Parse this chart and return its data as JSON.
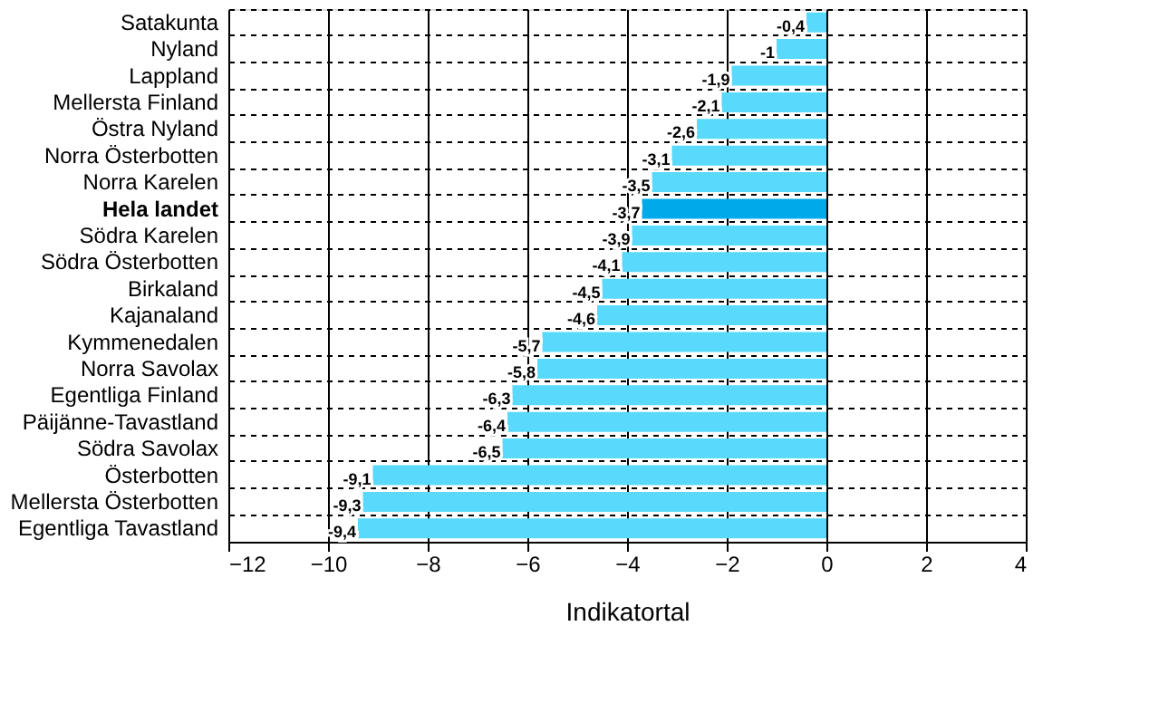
{
  "chart_data": {
    "type": "bar",
    "orientation": "horizontal",
    "xlabel": "Indikatortal",
    "categories": [
      "Satakunta",
      "Nyland",
      "Lappland",
      "Mellersta Finland",
      "Östra Nyland",
      "Norra Österbotten",
      "Norra Karelen",
      "Hela landet",
      "Södra Karelen",
      "Södra Österbotten",
      "Birkaland",
      "Kajanaland",
      "Kymmenedalen",
      "Norra Savolax",
      "Egentliga Finland",
      "Päijänne-Tavastland",
      "Södra Savolax",
      "Österbotten",
      "Mellersta Österbotten",
      "Egentliga Tavastland"
    ],
    "values": [
      -0.4,
      -1,
      -1.9,
      -2.1,
      -2.6,
      -3.1,
      -3.5,
      -3.7,
      -3.9,
      -4.1,
      -4.5,
      -4.6,
      -5.7,
      -5.8,
      -6.3,
      -6.4,
      -6.5,
      -9.1,
      -9.3,
      -9.4
    ],
    "value_labels": [
      "-0,4",
      "-1",
      "-1,9",
      "-2,1",
      "-2,6",
      "-3,1",
      "-3,5",
      "-3,7",
      "-3,9",
      "-4,1",
      "-4,5",
      "-4,6",
      "-5,7",
      "-5,8",
      "-6,3",
      "-6,4",
      "-6,5",
      "-9,1",
      "-9,3",
      "-9,4"
    ],
    "colors": [
      "#59d9fb",
      "#59d9fb",
      "#59d9fb",
      "#59d9fb",
      "#59d9fb",
      "#59d9fb",
      "#59d9fb",
      "#00aaea",
      "#59d9fb",
      "#59d9fb",
      "#59d9fb",
      "#59d9fb",
      "#59d9fb",
      "#59d9fb",
      "#59d9fb",
      "#59d9fb",
      "#59d9fb",
      "#59d9fb",
      "#59d9fb",
      "#59d9fb"
    ],
    "xlim": [
      -12,
      4
    ],
    "xticks": [
      -12,
      -10,
      -8,
      -6,
      -4,
      -2,
      0,
      2,
      4
    ],
    "grid": true
  }
}
